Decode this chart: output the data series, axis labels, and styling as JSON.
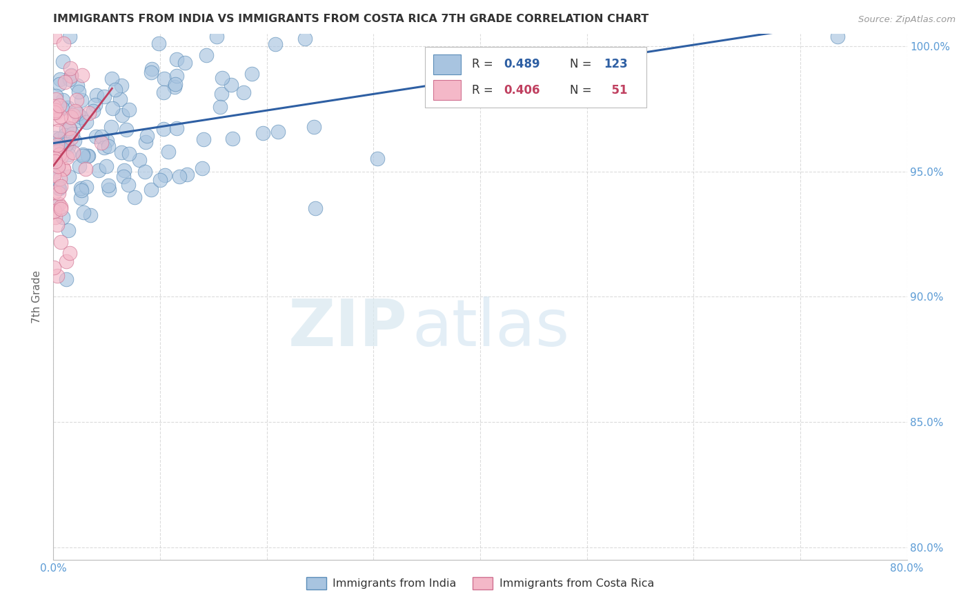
{
  "title": "IMMIGRANTS FROM INDIA VS IMMIGRANTS FROM COSTA RICA 7TH GRADE CORRELATION CHART",
  "source": "Source: ZipAtlas.com",
  "ylabel": "7th Grade",
  "xlim": [
    0.0,
    0.8
  ],
  "ylim": [
    0.795,
    1.005
  ],
  "x_ticks": [
    0.0,
    0.1,
    0.2,
    0.3,
    0.4,
    0.5,
    0.6,
    0.7,
    0.8
  ],
  "y_ticks": [
    0.8,
    0.85,
    0.9,
    0.95,
    1.0
  ],
  "y_tick_labels": [
    "80.0%",
    "85.0%",
    "90.0%",
    "95.0%",
    "100.0%"
  ],
  "india_R": 0.489,
  "india_N": 123,
  "costa_rica_R": 0.406,
  "costa_rica_N": 51,
  "india_color": "#a8c4e0",
  "india_edge_color": "#5b8db8",
  "india_line_color": "#2e5fa3",
  "costa_rica_color": "#f4b8c8",
  "costa_rica_edge_color": "#d07090",
  "costa_rica_line_color": "#c04060",
  "legend_label_india": "Immigrants from India",
  "legend_label_costa_rica": "Immigrants from Costa Rica",
  "watermark_zip": "ZIP",
  "watermark_atlas": "atlas",
  "background_color": "#ffffff",
  "grid_color": "#cccccc",
  "title_color": "#333333",
  "axis_label_color": "#666666",
  "right_axis_color": "#5b9bd5",
  "india_seed": 42,
  "costa_rica_seed": 77
}
